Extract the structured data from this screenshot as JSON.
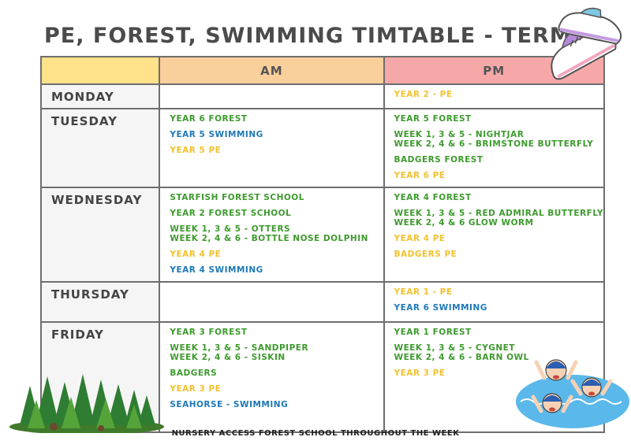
{
  "title": "PE, FOREST, SWIMMING TIMTABLE - TERM 6",
  "headers": {
    "am": "AM",
    "pm": "PM"
  },
  "days": [
    {
      "name": "MONDAY",
      "am": [],
      "pm": [
        {
          "text": "YEAR 2 - PE",
          "color": "yellow"
        }
      ]
    },
    {
      "name": "TUESDAY",
      "am": [
        {
          "text": "YEAR 6 FOREST",
          "color": "green"
        },
        {
          "text": "YEAR 5 SWIMMING",
          "color": "blue"
        },
        {
          "text": "YEAR 5 PE",
          "color": "yellow"
        }
      ],
      "pm": [
        {
          "text": "YEAR 5 FOREST",
          "color": "green"
        },
        {
          "text": "WEEK 1, 3 & 5 - NIGHTJAR",
          "line2": "WEEK 2, 4 & 6 - BRIMSTONE BUTTERFLY",
          "color": "green"
        },
        {
          "text": "BADGERS FOREST",
          "color": "green"
        },
        {
          "text": "YEAR 6 PE",
          "color": "yellow"
        }
      ]
    },
    {
      "name": "WEDNESDAY",
      "am": [
        {
          "text": "STARFISH FOREST SCHOOL",
          "color": "green"
        },
        {
          "text": "YEAR 2 FOREST SCHOOL",
          "color": "green"
        },
        {
          "text": "WEEK 1, 3 & 5 - OTTERS",
          "line2": "WEEK 2, 4 & 6 - BOTTLE NOSE DOLPHIN",
          "color": "green"
        },
        {
          "text": "YEAR 4 PE",
          "color": "yellow"
        },
        {
          "text": "YEAR 4 SWIMMING",
          "color": "blue"
        }
      ],
      "pm": [
        {
          "text": "YEAR 4 FOREST",
          "color": "green"
        },
        {
          "text": "WEEK 1, 3 & 5 - RED ADMIRAL BUTTERFLY",
          "line2": "WEEK 2, 4 & 6 GLOW WORM",
          "color": "green"
        },
        {
          "text": "YEAR 4 PE",
          "color": "yellow"
        },
        {
          "text": "BADGERS PE",
          "color": "yellow"
        }
      ]
    },
    {
      "name": "THURSDAY",
      "am": [],
      "pm": [
        {
          "text": "YEAR 1 - PE",
          "color": "yellow"
        },
        {
          "text": "YEAR 6 SWIMMING",
          "color": "blue"
        }
      ]
    },
    {
      "name": "FRIDAY",
      "am": [
        {
          "text": "YEAR 3 FOREST",
          "color": "green"
        },
        {
          "text": "WEEK 1, 3 & 5 - SANDPIPER",
          "line2": "WEEK 2, 4 & 6 - SISKIN",
          "color": "green"
        },
        {
          "text": "BADGERS",
          "color": "green"
        },
        {
          "text": "YEAR 3 PE",
          "color": "yellow"
        },
        {
          "text": "SEAHORSE - SWIMMING",
          "color": "blue"
        }
      ],
      "pm": [
        {
          "text": "YEAR 1 FOREST",
          "color": "green"
        },
        {
          "text": "WEEK 1, 3 & 5 - CYGNET",
          "line2": "WEEK 2, 4 & 6 - BARN OWL",
          "color": "green"
        },
        {
          "text": "YEAR 3 PE",
          "color": "yellow"
        }
      ]
    }
  ],
  "footer": "NURSERY ACCESS FOREST SCHOOL THROUGHOUT THE WEEK",
  "colors": {
    "green": "#3d9a2d",
    "blue": "#1e78b8",
    "yellow": "#f2c12e"
  },
  "illustrations": [
    "sneakers-illustration",
    "forest-trees-illustration",
    "swimming-children-illustration"
  ]
}
